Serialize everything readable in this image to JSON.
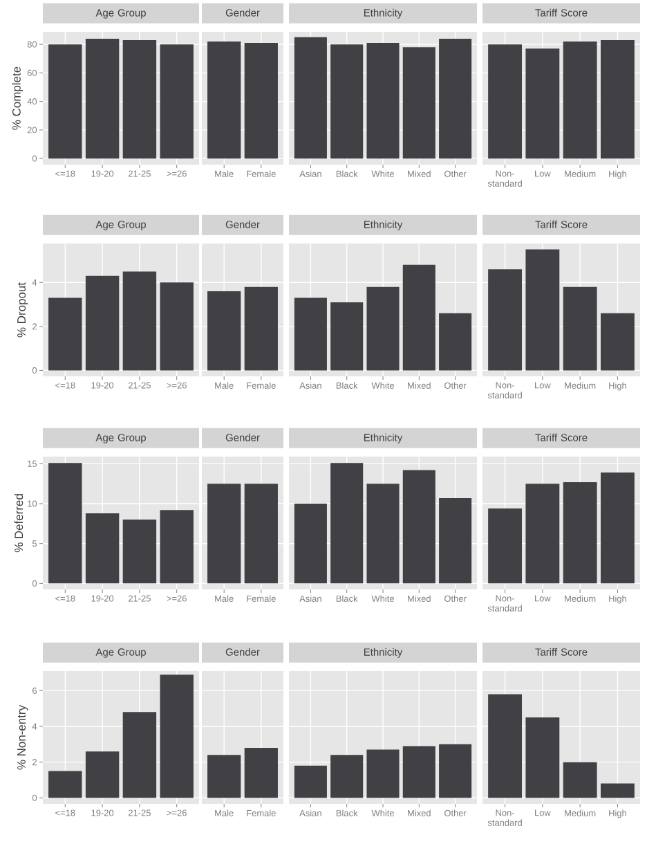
{
  "chart_data": [
    {
      "type": "bar",
      "title": "Age Group",
      "ylabel": "% Complete",
      "categories": [
        "<=18",
        "19-20",
        "21-25",
        ">=26"
      ],
      "values": [
        80,
        84,
        83,
        80
      ],
      "color": "#404045",
      "ylim": [
        -4.3,
        88.8
      ],
      "yticks": [
        0,
        20,
        40,
        60,
        80
      ],
      "grid": true
    },
    {
      "type": "bar",
      "title": "Gender",
      "categories": [
        "Male",
        "Female"
      ],
      "values": [
        82,
        81
      ],
      "color": "#404045",
      "ylim": [
        -4.3,
        88.8
      ],
      "yticks": [
        0,
        20,
        40,
        60,
        80
      ],
      "grid": true,
      "tick_labels": "x"
    },
    {
      "type": "bar",
      "title": "Ethnicity",
      "categories": [
        "Asian",
        "Black",
        "White",
        "Mixed",
        "Other"
      ],
      "values": [
        85,
        80,
        81,
        78,
        84
      ],
      "color": "#404045",
      "ylim": [
        -4.3,
        88.8
      ],
      "yticks": [
        0,
        20,
        40,
        60,
        80
      ],
      "grid": true,
      "tick_labels": "x"
    },
    {
      "type": "bar",
      "title": "Tariff Score",
      "categories": [
        "Non-standard",
        "Low",
        "Medium",
        "High"
      ],
      "values": [
        80,
        77,
        82,
        83
      ],
      "color": "#404045",
      "ylim": [
        -4.3,
        88.8
      ],
      "yticks": [
        0,
        20,
        40,
        60,
        80
      ],
      "grid": true,
      "tick_labels": "x"
    },
    {
      "type": "bar",
      "title": "Age Group",
      "ylabel": "% Dropout",
      "categories": [
        "<=18",
        "19-20",
        "21-25",
        ">=26"
      ],
      "values": [
        3.3,
        4.3,
        4.5,
        4.0
      ],
      "color": "#404045",
      "ylim": [
        -0.27,
        5.77
      ],
      "yticks": [
        0,
        2,
        4
      ],
      "grid": true
    },
    {
      "type": "bar",
      "title": "Gender",
      "categories": [
        "Male",
        "Female"
      ],
      "values": [
        3.6,
        3.8
      ],
      "color": "#404045",
      "ylim": [
        -0.27,
        5.77
      ],
      "yticks": [
        0,
        2,
        4
      ],
      "grid": true,
      "tick_labels": "x"
    },
    {
      "type": "bar",
      "title": "Ethnicity",
      "categories": [
        "Asian",
        "Black",
        "White",
        "Mixed",
        "Other"
      ],
      "values": [
        3.3,
        3.1,
        3.8,
        4.8,
        2.6
      ],
      "color": "#404045",
      "ylim": [
        -0.27,
        5.77
      ],
      "yticks": [
        0,
        2,
        4
      ],
      "grid": true,
      "tick_labels": "x"
    },
    {
      "type": "bar",
      "title": "Tariff Score",
      "categories": [
        "Non-standard",
        "Low",
        "Medium",
        "High"
      ],
      "values": [
        4.6,
        5.5,
        3.8,
        2.6
      ],
      "color": "#404045",
      "ylim": [
        -0.27,
        5.77
      ],
      "yticks": [
        0,
        2,
        4
      ],
      "grid": true,
      "tick_labels": "x"
    },
    {
      "type": "bar",
      "title": "Age Group",
      "ylabel": "% Deferred",
      "categories": [
        "<=18",
        "19-20",
        "21-25",
        ">=26"
      ],
      "values": [
        15.1,
        8.8,
        8.0,
        9.2
      ],
      "color": "#404045",
      "ylim": [
        -0.75,
        15.9
      ],
      "yticks": [
        0,
        5,
        10,
        15
      ],
      "grid": true
    },
    {
      "type": "bar",
      "title": "Gender",
      "categories": [
        "Male",
        "Female"
      ],
      "values": [
        12.5,
        12.5
      ],
      "color": "#404045",
      "ylim": [
        -0.75,
        15.9
      ],
      "yticks": [
        0,
        5,
        10,
        15
      ],
      "grid": true,
      "tick_labels": "x"
    },
    {
      "type": "bar",
      "title": "Ethnicity",
      "categories": [
        "Asian",
        "Black",
        "White",
        "Mixed",
        "Other"
      ],
      "values": [
        10.0,
        15.1,
        12.5,
        14.2,
        10.7
      ],
      "color": "#404045",
      "ylim": [
        -0.75,
        15.9
      ],
      "yticks": [
        0,
        5,
        10,
        15
      ],
      "grid": true,
      "tick_labels": "x"
    },
    {
      "type": "bar",
      "title": "Tariff Score",
      "categories": [
        "Non-standard",
        "Low",
        "Medium",
        "High"
      ],
      "values": [
        9.4,
        12.5,
        12.7,
        13.9
      ],
      "color": "#404045",
      "ylim": [
        -0.75,
        15.9
      ],
      "yticks": [
        0,
        5,
        10,
        15
      ],
      "grid": true,
      "tick_labels": "x"
    },
    {
      "type": "bar",
      "title": "Age Group",
      "ylabel": "% Non-entry",
      "categories": [
        "<=18",
        "19-20",
        "21-25",
        ">=26"
      ],
      "values": [
        1.5,
        2.6,
        4.8,
        6.9
      ],
      "color": "#404045",
      "ylim": [
        -0.34,
        7.1
      ],
      "yticks": [
        0,
        2,
        4,
        6
      ],
      "grid": true
    },
    {
      "type": "bar",
      "title": "Gender",
      "categories": [
        "Male",
        "Female"
      ],
      "values": [
        2.4,
        2.8
      ],
      "color": "#404045",
      "ylim": [
        -0.34,
        7.1
      ],
      "yticks": [
        0,
        2,
        4,
        6
      ],
      "grid": true,
      "tick_labels": "x"
    },
    {
      "type": "bar",
      "title": "Ethnicity",
      "categories": [
        "Asian",
        "Black",
        "White",
        "Mixed",
        "Other"
      ],
      "values": [
        1.8,
        2.4,
        2.7,
        2.9,
        3.0
      ],
      "color": "#404045",
      "ylim": [
        -0.34,
        7.1
      ],
      "yticks": [
        0,
        2,
        4,
        6
      ],
      "grid": true,
      "tick_labels": "x"
    },
    {
      "type": "bar",
      "title": "Tariff Score",
      "categories": [
        "Non-standard",
        "Low",
        "Medium",
        "High"
      ],
      "values": [
        5.8,
        4.5,
        2.0,
        0.8
      ],
      "color": "#404045",
      "ylim": [
        -0.34,
        7.1
      ],
      "yticks": [
        0,
        2,
        4,
        6
      ],
      "grid": true,
      "tick_labels": "x"
    }
  ]
}
